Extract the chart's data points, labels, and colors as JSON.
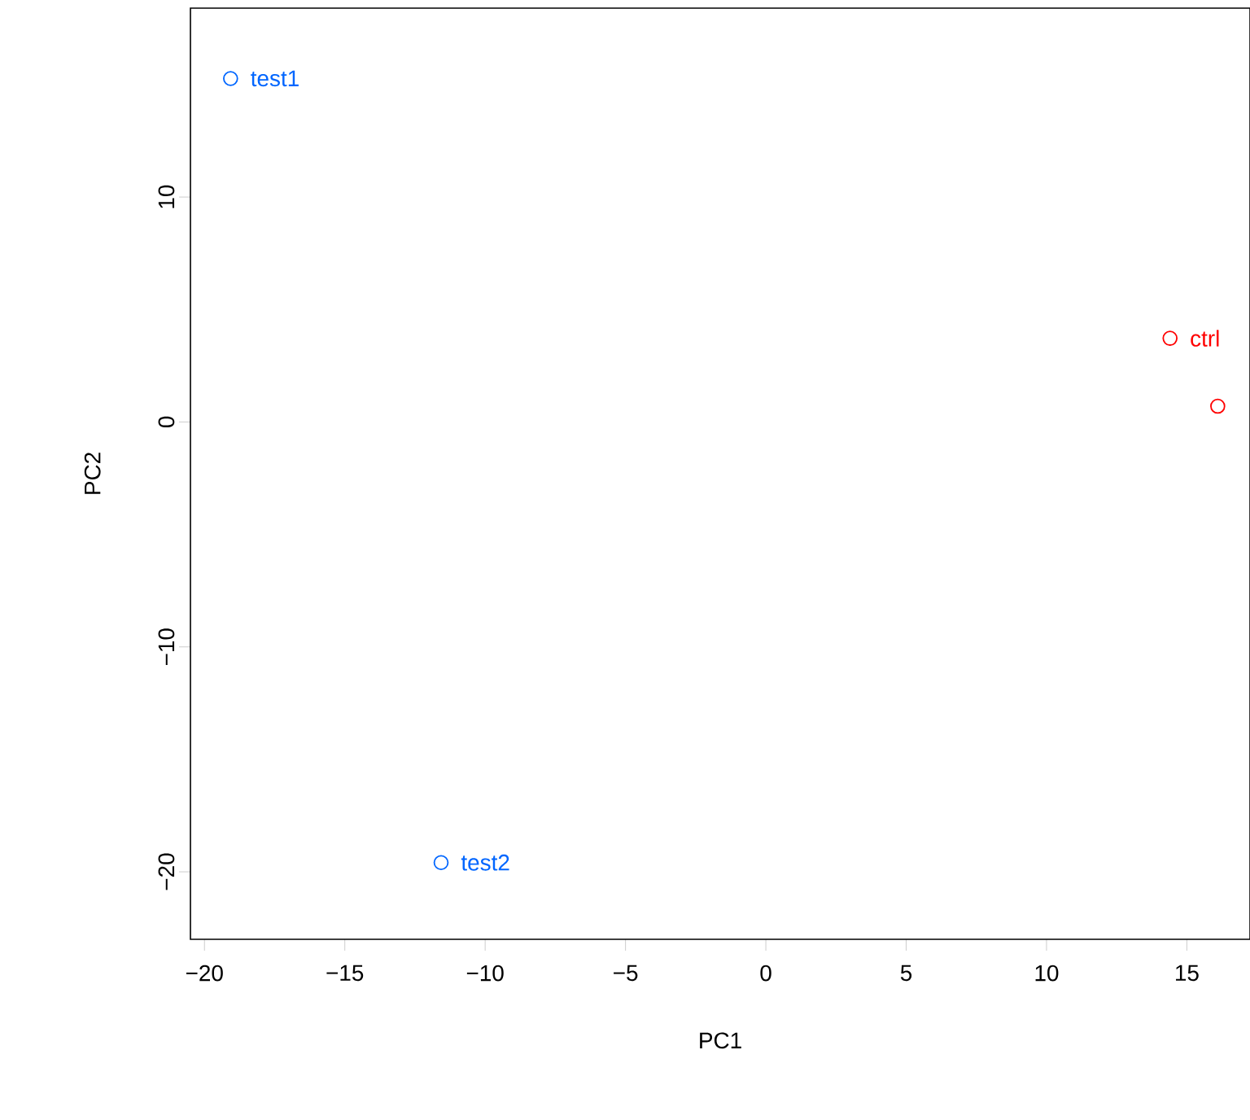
{
  "chart_data": {
    "type": "scatter",
    "xlabel": "PC1",
    "ylabel": "PC2",
    "xlim": [
      -20.5,
      17.25
    ],
    "ylim": [
      -23.0,
      18.4
    ],
    "xticks": [
      {
        "value": -20,
        "label": "−20"
      },
      {
        "value": -15,
        "label": "−15"
      },
      {
        "value": -10,
        "label": "−10"
      },
      {
        "value": -5,
        "label": "−5"
      },
      0,
      5,
      10,
      15
    ],
    "yticks": [
      {
        "value": -20,
        "label": "−20"
      },
      {
        "value": -10,
        "label": "−10"
      },
      0,
      10
    ],
    "marker": "circle",
    "grid": false,
    "series": [
      {
        "name": "test1",
        "color": "#0066ff",
        "x": [
          -19.07
        ],
        "values": [
          15.27
        ]
      },
      {
        "name": "test2",
        "color": "#0066ff",
        "x": [
          -11.57
        ],
        "values": [
          -19.59
        ]
      },
      {
        "name": "ctrl",
        "color": "#ff0000",
        "x": [
          14.4
        ],
        "values": [
          3.72
        ]
      },
      {
        "color": "#ff0000",
        "x": [
          16.1
        ],
        "values": [
          0.7
        ]
      }
    ]
  }
}
